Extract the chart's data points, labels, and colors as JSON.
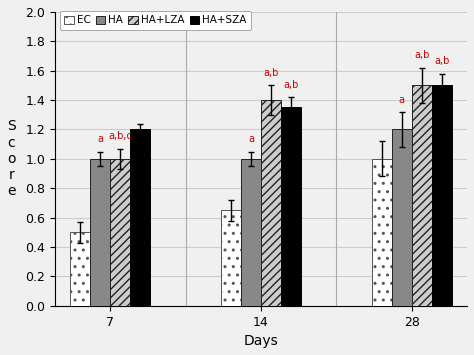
{
  "groups": [
    "7",
    "14",
    "28"
  ],
  "series": {
    "EC": {
      "values": [
        0.5,
        0.65,
        1.0
      ],
      "errors": [
        0.07,
        0.07,
        0.12
      ],
      "color": "white",
      "edgecolor": "#555555",
      "hatch": ".."
    },
    "HA": {
      "values": [
        1.0,
        1.0,
        1.2
      ],
      "errors": [
        0.05,
        0.05,
        0.12
      ],
      "color": "#888888",
      "edgecolor": "#222222",
      "hatch": ""
    },
    "HA+LZA": {
      "values": [
        1.0,
        1.4,
        1.5
      ],
      "errors": [
        0.07,
        0.1,
        0.12
      ],
      "color": "#cccccc",
      "edgecolor": "#222222",
      "hatch": "////"
    },
    "HA+SZA": {
      "values": [
        1.2,
        1.35,
        1.5
      ],
      "errors": [
        0.04,
        0.07,
        0.08
      ],
      "color": "black",
      "edgecolor": "black",
      "hatch": ""
    }
  },
  "annotations": {
    "7": [
      "",
      "a",
      "a,b,c",
      ""
    ],
    "14": [
      "",
      "a",
      "a,b",
      "a,b"
    ],
    "28": [
      "",
      "a",
      "a,b",
      "a,b"
    ]
  },
  "xlabel": "Days",
  "ylabel": "S\nc\no\nr\ne",
  "ylim": [
    0,
    2.0
  ],
  "yticks": [
    0,
    0.2,
    0.4,
    0.6,
    0.8,
    1.0,
    1.2,
    1.4,
    1.6,
    1.8,
    2.0
  ],
  "legend_labels": [
    "EC",
    "HA",
    "HA+LZA",
    "HA+SZA"
  ],
  "bar_width": 0.2,
  "annotation_color": "#cc0000",
  "background_color": "#f0f0f0",
  "grid_color": "#cccccc"
}
